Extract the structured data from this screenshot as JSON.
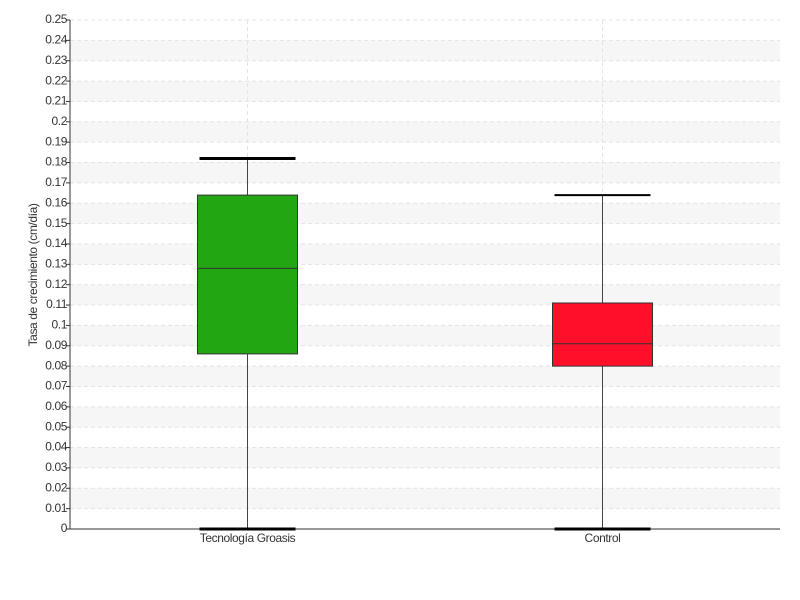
{
  "chart_data": {
    "type": "box",
    "y_label": "Tasa de crecimiento (cm/día)",
    "categories": [
      "Tecnología Groasis",
      "Control"
    ],
    "boxes": [
      {
        "color": "#22a612",
        "min": 0,
        "q1": 0.086,
        "median": 0.128,
        "q3": 0.164,
        "max": 0.182
      },
      {
        "color": "#ff0f2a",
        "min": 0,
        "q1": 0.08,
        "median": 0.091,
        "q3": 0.111,
        "max": 0.164
      }
    ],
    "ylim": [
      0,
      0.25
    ],
    "yticks": [
      0,
      0.01,
      0.02,
      0.03,
      0.04,
      0.05,
      0.06,
      0.07,
      0.08,
      0.09,
      0.1,
      0.11,
      0.12,
      0.13,
      0.14,
      0.15,
      0.16,
      0.17,
      0.18,
      0.19,
      0.2,
      0.21,
      0.22,
      0.23,
      0.24,
      0.25
    ],
    "grid": true
  }
}
